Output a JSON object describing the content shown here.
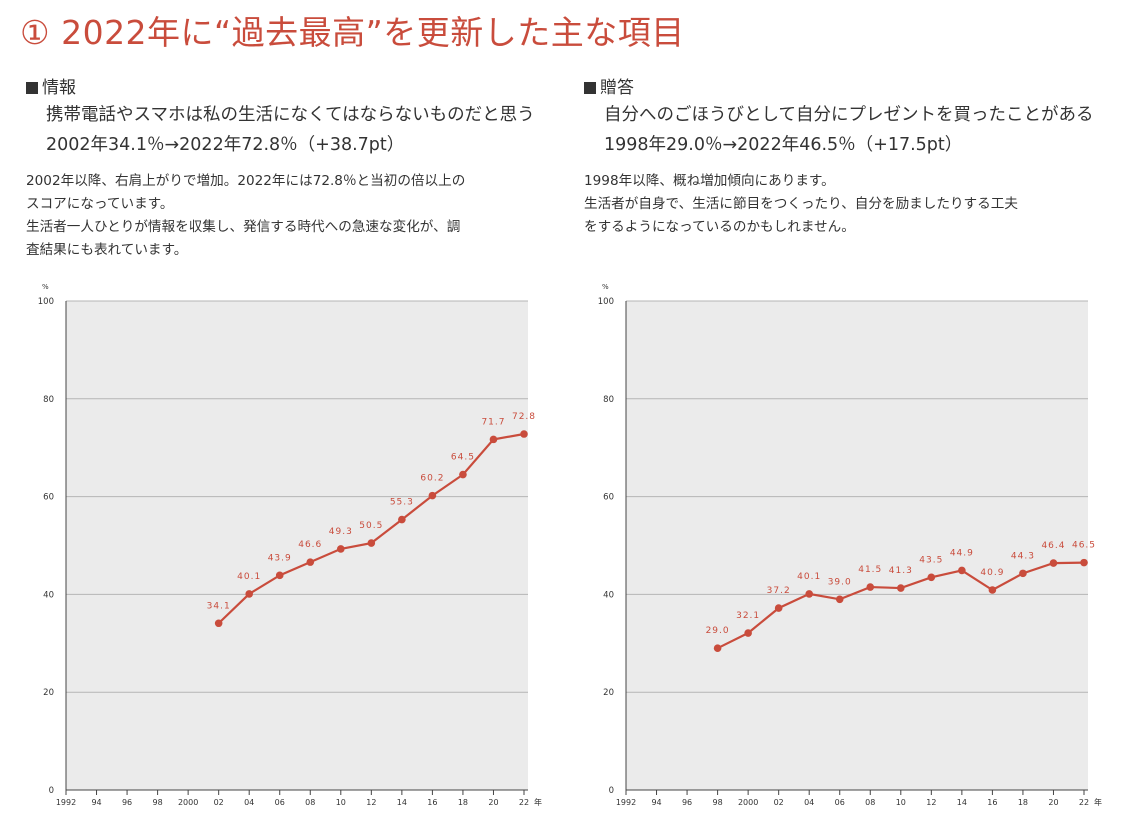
{
  "title": "① 2022年に“過去最高”を更新した主な項目",
  "panels": [
    {
      "section": "情報",
      "headline": "携帯電話やスマホは私の生活になくてはならないものだと思う",
      "stat": "2002年34.1％→2022年72.8％（+38.7pt）",
      "desc": [
        "2002年以降、右肩上がりで増加。2022年には72.8％と当初の倍以上の",
        "スコアになっています。",
        "生活者一人ひとりが情報を収集し、発信する時代への急速な変化が、調",
        "査結果にも表れています。"
      ]
    },
    {
      "section": "贈答",
      "headline": "自分へのごほうびとして自分にプレゼントを買ったことがある",
      "stat": "1998年29.0％→2022年46.5％（+17.5pt）",
      "desc": [
        "1998年以降、概ね増加傾向にあります。",
        "生活者が自身で、生活に節目をつくったり、自分を励ましたりする工夫",
        "をするようになっているのかもしれません。"
      ]
    }
  ],
  "chart_data": [
    {
      "type": "line",
      "ylabel": "%",
      "ylim": [
        0,
        100
      ],
      "yticks": [
        0,
        20,
        40,
        60,
        80,
        100
      ],
      "xlim": [
        1992,
        2022
      ],
      "xticks": [
        1992,
        1994,
        1996,
        1998,
        2000,
        2002,
        2004,
        2006,
        2008,
        2010,
        2012,
        2014,
        2016,
        2018,
        2020,
        2022
      ],
      "xtick_labels": [
        "1992",
        "94",
        "96",
        "98",
        "2000",
        "02",
        "04",
        "06",
        "08",
        "10",
        "12",
        "14",
        "16",
        "18",
        "20",
        "22"
      ],
      "x_unit": "年",
      "grid": true,
      "color": "#c94c3c",
      "x": [
        2002,
        2004,
        2006,
        2008,
        2010,
        2012,
        2014,
        2016,
        2018,
        2020,
        2022
      ],
      "values": [
        34.1,
        40.1,
        43.9,
        46.6,
        49.3,
        50.5,
        55.3,
        60.2,
        64.5,
        71.7,
        72.8
      ]
    },
    {
      "type": "line",
      "ylabel": "%",
      "ylim": [
        0,
        100
      ],
      "yticks": [
        0,
        20,
        40,
        60,
        80,
        100
      ],
      "xlim": [
        1992,
        2022
      ],
      "xticks": [
        1992,
        1994,
        1996,
        1998,
        2000,
        2002,
        2004,
        2006,
        2008,
        2010,
        2012,
        2014,
        2016,
        2018,
        2020,
        2022
      ],
      "xtick_labels": [
        "1992",
        "94",
        "96",
        "98",
        "2000",
        "02",
        "04",
        "06",
        "08",
        "10",
        "12",
        "14",
        "16",
        "18",
        "20",
        "22"
      ],
      "x_unit": "年",
      "grid": true,
      "color": "#c94c3c",
      "x": [
        1998,
        2000,
        2002,
        2004,
        2006,
        2008,
        2010,
        2012,
        2014,
        2016,
        2018,
        2020,
        2022
      ],
      "values": [
        29.0,
        32.1,
        37.2,
        40.1,
        39.0,
        41.5,
        41.3,
        43.5,
        44.9,
        40.9,
        44.3,
        46.4,
        46.5
      ]
    }
  ]
}
